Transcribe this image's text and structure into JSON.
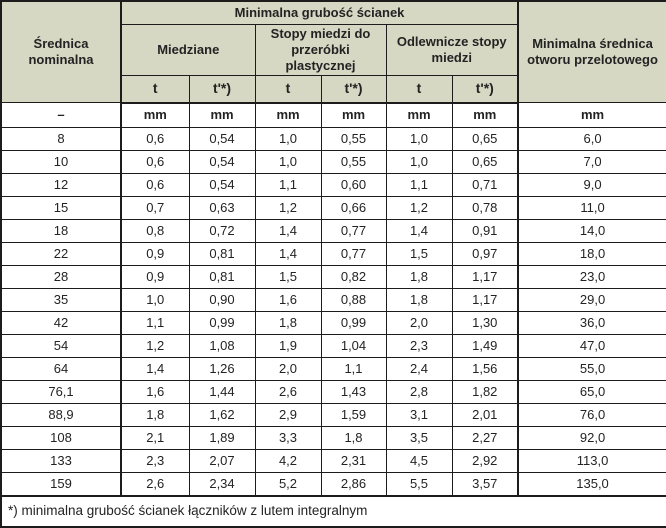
{
  "table": {
    "header": {
      "diameter": "Średnica nominalna",
      "thickness_group": "Minimalna grubość ścianek",
      "copper_group": "Miedziane",
      "wrought_group": "Stopy miedzi do przeróbki plastycznej",
      "cast_group": "Odlewnicze stopy miedzi",
      "hole": "Minimalna średnica otworu przelotowego",
      "sub_labels": [
        "t",
        "t'*)",
        "t",
        "t'*)",
        "t",
        "t'*)"
      ]
    },
    "units": [
      "–",
      "mm",
      "mm",
      "mm",
      "mm",
      "mm",
      "mm",
      "mm"
    ],
    "rows": [
      [
        "8",
        "0,6",
        "0,54",
        "1,0",
        "0,55",
        "1,0",
        "0,65",
        "6,0"
      ],
      [
        "10",
        "0,6",
        "0,54",
        "1,0",
        "0,55",
        "1,0",
        "0,65",
        "7,0"
      ],
      [
        "12",
        "0,6",
        "0,54",
        "1,1",
        "0,60",
        "1,1",
        "0,71",
        "9,0"
      ],
      [
        "15",
        "0,7",
        "0,63",
        "1,2",
        "0,66",
        "1,2",
        "0,78",
        "11,0"
      ],
      [
        "18",
        "0,8",
        "0,72",
        "1,4",
        "0,77",
        "1,4",
        "0,91",
        "14,0"
      ],
      [
        "22",
        "0,9",
        "0,81",
        "1,4",
        "0,77",
        "1,5",
        "0,97",
        "18,0"
      ],
      [
        "28",
        "0,9",
        "0,81",
        "1,5",
        "0,82",
        "1,8",
        "1,17",
        "23,0"
      ],
      [
        "35",
        "1,0",
        "0,90",
        "1,6",
        "0,88",
        "1,8",
        "1,17",
        "29,0"
      ],
      [
        "42",
        "1,1",
        "0,99",
        "1,8",
        "0,99",
        "2,0",
        "1,30",
        "36,0"
      ],
      [
        "54",
        "1,2",
        "1,08",
        "1,9",
        "1,04",
        "2,3",
        "1,49",
        "47,0"
      ],
      [
        "64",
        "1,4",
        "1,26",
        "2,0",
        "1,1",
        "2,4",
        "1,56",
        "55,0"
      ],
      [
        "76,1",
        "1,6",
        "1,44",
        "2,6",
        "1,43",
        "2,8",
        "1,82",
        "65,0"
      ],
      [
        "88,9",
        "1,8",
        "1,62",
        "2,9",
        "1,59",
        "3,1",
        "2,01",
        "76,0"
      ],
      [
        "108",
        "2,1",
        "1,89",
        "3,3",
        "1,8",
        "3,5",
        "2,27",
        "92,0"
      ],
      [
        "133",
        "2,3",
        "2,07",
        "4,2",
        "2,31",
        "4,5",
        "2,92",
        "113,0"
      ],
      [
        "159",
        "2,6",
        "2,34",
        "5,2",
        "2,86",
        "5,5",
        "3,57",
        "135,0"
      ]
    ],
    "footnote": "*) minimalna grubość ścianek łączników z lutem integralnym"
  },
  "colors": {
    "header_bg": "#d6d8c4",
    "border": "#1c1c1c",
    "text": "#232323",
    "body_bg": "#ffffff"
  }
}
